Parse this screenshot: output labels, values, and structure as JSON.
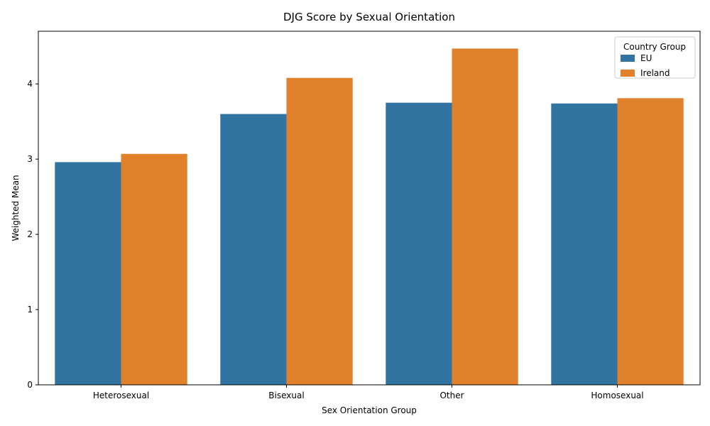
{
  "chart_data": {
    "type": "bar",
    "title": "DJG Score by Sexual Orientation",
    "xlabel": "Sex Orientation Group",
    "ylabel": "Weighted Mean",
    "categories": [
      "Heterosexual",
      "Bisexual",
      "Other",
      "Homosexual"
    ],
    "series": [
      {
        "name": "EU",
        "values": [
          2.96,
          3.6,
          3.75,
          3.74
        ],
        "color": "#3274a1"
      },
      {
        "name": "Ireland",
        "values": [
          3.07,
          4.08,
          4.47,
          3.81
        ],
        "color": "#e1812c"
      }
    ],
    "ylim": [
      0,
      4.7
    ],
    "yticks": [
      "0",
      "1",
      "2",
      "3",
      "4"
    ],
    "legend": {
      "title": "Country Group",
      "position": "top-right"
    },
    "grid": false
  }
}
